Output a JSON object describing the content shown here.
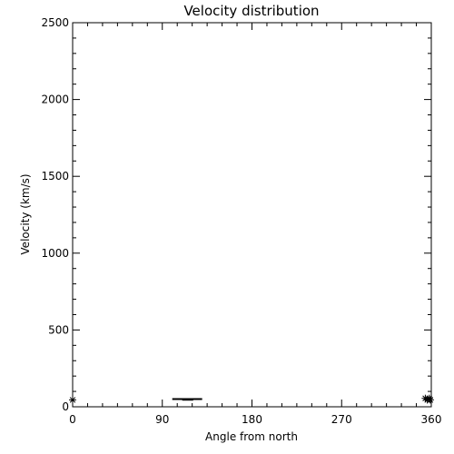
{
  "chart_data": {
    "type": "scatter",
    "title": "Velocity distribution",
    "xlabel": "Angle from north",
    "ylabel": "Velocity (km/s)",
    "xlim": [
      0,
      360
    ],
    "ylim": [
      0,
      2500
    ],
    "xticks": [
      0,
      90,
      180,
      270,
      360
    ],
    "yticks": [
      0,
      500,
      1000,
      1500,
      2000,
      2500
    ],
    "grid": false,
    "marker": "asterisk",
    "color": "#000000",
    "points": [
      {
        "x": 0,
        "y": 45
      },
      {
        "x": 354,
        "y": 55
      },
      {
        "x": 356,
        "y": 45
      },
      {
        "x": 358,
        "y": 55
      },
      {
        "x": 359,
        "y": 45
      }
    ],
    "segments": [
      {
        "x1": 100,
        "x2": 130,
        "y": 50
      },
      {
        "x1": 110,
        "x2": 121,
        "y": 46
      }
    ]
  }
}
